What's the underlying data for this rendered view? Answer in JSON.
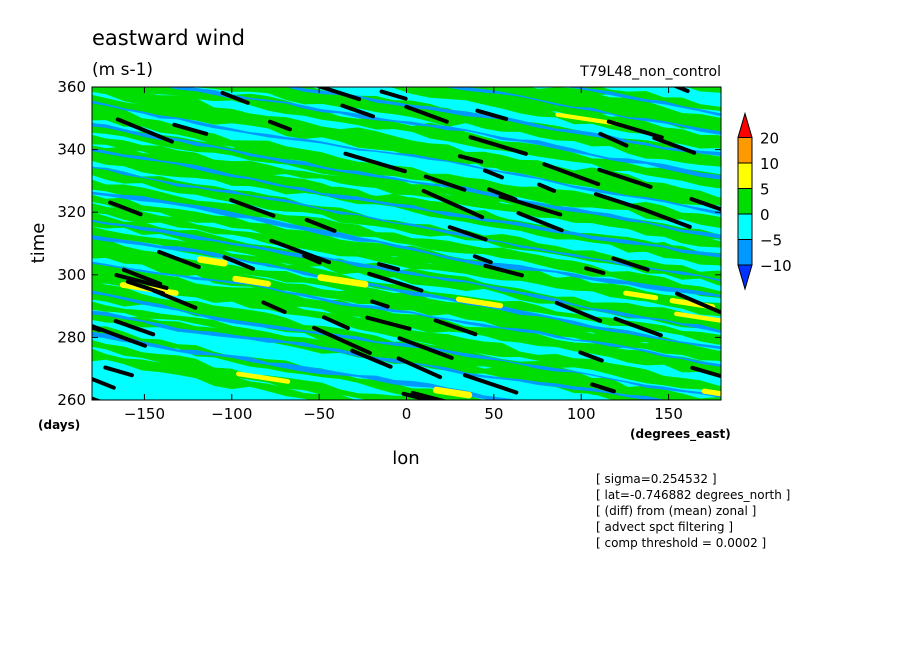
{
  "chart_data": {
    "type": "heatmap",
    "title": "eastward wind",
    "units": "(m s-1)",
    "run_label": "T79L48_non_control",
    "xlabel": "lon",
    "x_units": "(degrees_east)",
    "ylabel": "time",
    "y_units": "(days)",
    "xlim": [
      -180,
      180
    ],
    "ylim": [
      260,
      360
    ],
    "x_ticks": [
      {
        "value": -150,
        "label": "-150"
      },
      {
        "value": -100,
        "label": "-100"
      },
      {
        "value": -50,
        "label": "-50"
      },
      {
        "value": 0,
        "label": "0"
      },
      {
        "value": 50,
        "label": "50"
      },
      {
        "value": 100,
        "label": "100"
      },
      {
        "value": 150,
        "label": "150"
      }
    ],
    "y_ticks": [
      {
        "value": 260,
        "label": "260"
      },
      {
        "value": 280,
        "label": "280"
      },
      {
        "value": 300,
        "label": "300"
      },
      {
        "value": 320,
        "label": "320"
      },
      {
        "value": 340,
        "label": "340"
      },
      {
        "value": 360,
        "label": "360"
      }
    ],
    "colorbar": {
      "levels": [
        {
          "value": 20,
          "label": "20"
        },
        {
          "value": 10,
          "label": "10"
        },
        {
          "value": 5,
          "label": "5"
        },
        {
          "value": 0,
          "label": "0"
        },
        {
          "value": -5,
          "label": "-5"
        },
        {
          "value": -10,
          "label": "-10"
        }
      ],
      "colors": [
        "#ff0000",
        "#ff9900",
        "#ffff00",
        "#00dd00",
        "#00ffff",
        "#0099ff",
        "#0033ff"
      ]
    },
    "overlay_color": "#000000",
    "notes": [
      "[ sigma=0.254532 ]",
      "[ lat=-0.746882 degrees_north ]",
      "[ (diff) from (mean) zonal ]",
      "[ advect spct filtering ]",
      "[ comp threshold = 0.0002 ]"
    ]
  }
}
